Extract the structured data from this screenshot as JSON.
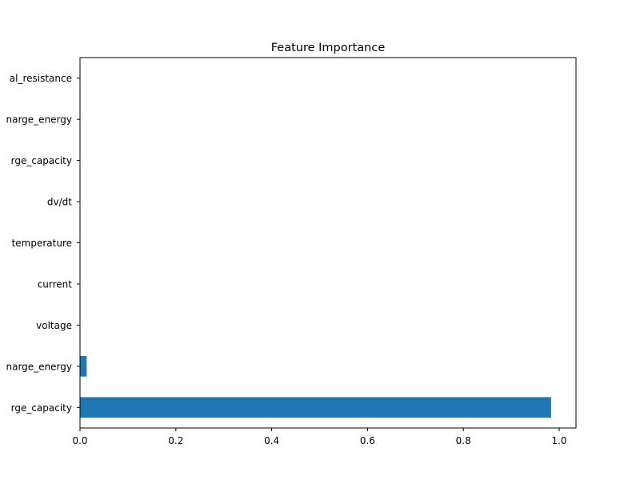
{
  "chart_data": {
    "type": "bar",
    "orientation": "horizontal",
    "title": "Feature Importance",
    "xlabel": "",
    "ylabel": "",
    "xlim": [
      0,
      1.035
    ],
    "xticks": [
      0.0,
      0.2,
      0.4,
      0.6,
      0.8,
      1.0
    ],
    "xtick_labels": [
      "0.0",
      "0.2",
      "0.4",
      "0.6",
      "0.8",
      "1.0"
    ],
    "categories": [
      "rge_capacity",
      "narge_energy",
      "voltage",
      "current",
      "temperature",
      "dv/dt",
      "rge_capacity",
      "narge_energy",
      "al_resistance"
    ],
    "values": [
      0.983,
      0.014,
      0.0,
      0.0,
      0.0,
      0.0,
      0.0,
      0.0,
      0.0
    ],
    "bar_color": "#1f77b4",
    "grid": false,
    "legend": "none"
  }
}
